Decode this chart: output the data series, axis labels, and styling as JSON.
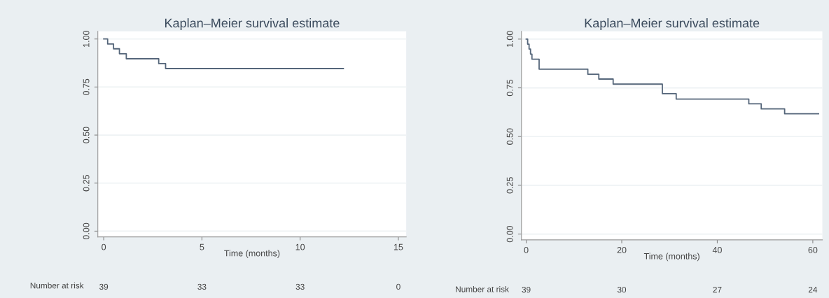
{
  "chart_data": [
    {
      "type": "step",
      "title": "Kaplan–Meier survival estimate",
      "xlabel": "Time (months)",
      "x": [
        0,
        0.2,
        0.5,
        0.8,
        1.15,
        2.8,
        3.15,
        12.2
      ],
      "series": [
        {
          "color": "#55667a",
          "values": [
            1,
            0.974,
            0.949,
            0.923,
            0.897,
            0.872,
            0.846,
            0.846
          ]
        }
      ],
      "xlim": [
        -0.3,
        15.4
      ],
      "xticks": [
        0,
        5,
        10,
        15
      ],
      "ylim": [
        -0.03,
        1.04
      ],
      "yticks": [
        {
          "value": 0,
          "label": "0.00"
        },
        {
          "value": 0.25,
          "label": "0.25"
        },
        {
          "value": 0.5,
          "label": "0.50"
        },
        {
          "value": 0.75,
          "label": "0.75"
        },
        {
          "value": 1,
          "label": "1.00"
        }
      ],
      "grid": "y",
      "legend": false,
      "annotations": [
        "Number at risk",
        "39",
        "33",
        "33",
        "0"
      ]
    },
    {
      "type": "step",
      "title": "Kaplan–Meier survival estimate",
      "xlabel": "Time (months)",
      "x": [
        0,
        0.3,
        0.6,
        0.9,
        1.2,
        2.7,
        12.9,
        15.2,
        18.2,
        28.5,
        31.4,
        46.6,
        49.2,
        54.1,
        61.2
      ],
      "series": [
        {
          "color": "#55667a",
          "values": [
            1,
            0.974,
            0.949,
            0.923,
            0.897,
            0.846,
            0.82,
            0.795,
            0.769,
            0.72,
            0.692,
            0.668,
            0.642,
            0.617,
            0.617
          ]
        }
      ],
      "xlim": [
        -1,
        62
      ],
      "xticks": [
        0,
        20,
        40,
        60
      ],
      "ylim": [
        -0.03,
        1.04
      ],
      "yticks": [
        {
          "value": 0,
          "label": "0.00"
        },
        {
          "value": 0.25,
          "label": "0.25"
        },
        {
          "value": 0.5,
          "label": "0.50"
        },
        {
          "value": 0.75,
          "label": "0.75"
        },
        {
          "value": 1,
          "label": "1.00"
        }
      ],
      "grid": "y",
      "legend": false,
      "annotations": [
        "Number at risk",
        "39",
        "30",
        "27",
        "24"
      ]
    }
  ]
}
